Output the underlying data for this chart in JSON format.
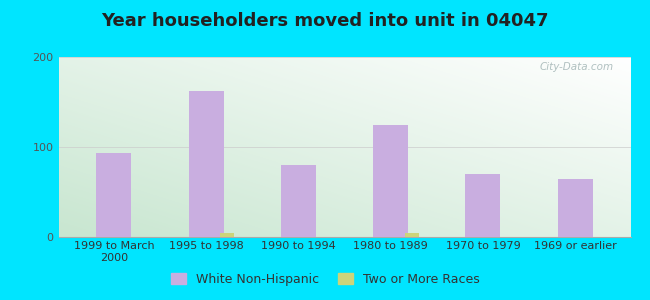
{
  "title": "Year householders moved into unit in 04047",
  "categories": [
    "1999 to March\n2000",
    "1995 to 1998",
    "1990 to 1994",
    "1980 to 1989",
    "1970 to 1979",
    "1969 or earlier"
  ],
  "white_non_hispanic": [
    93,
    162,
    80,
    125,
    70,
    65
  ],
  "two_or_more_races": [
    0,
    5,
    0,
    4,
    0,
    0
  ],
  "bar_color_white": "#c9aee0",
  "bar_color_two": "#ccd47a",
  "background_outer": "#00e5ff",
  "plot_bg_left": "#d6edda",
  "plot_bg_right": "#f5fbf5",
  "ylim": [
    0,
    200
  ],
  "yticks": [
    0,
    100,
    200
  ],
  "title_fontsize": 13,
  "tick_fontsize": 8,
  "legend_fontsize": 9,
  "watermark": "City-Data.com"
}
